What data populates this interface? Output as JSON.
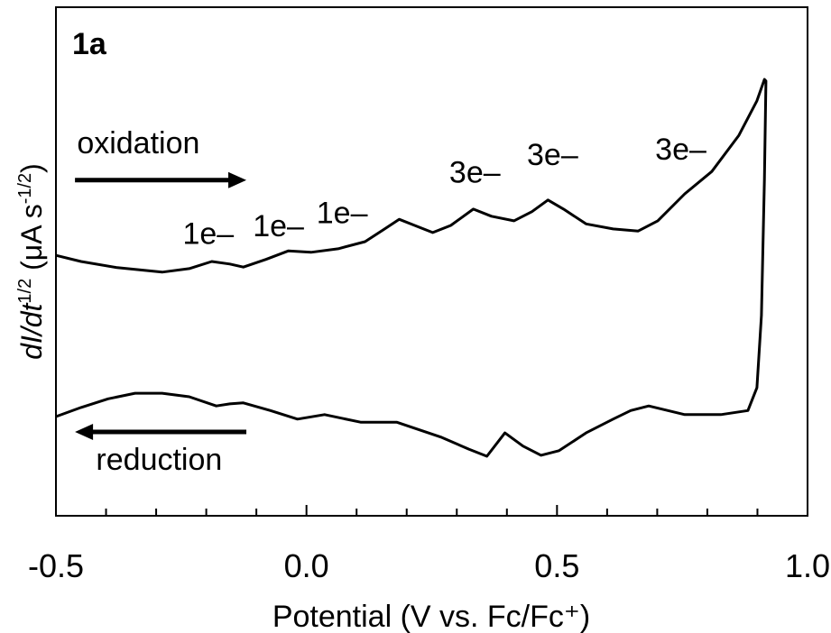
{
  "chart_data": {
    "type": "line",
    "panel_label": "1a",
    "xlabel": "Potential (V vs. Fc/Fc⁺)",
    "ylabel": [
      "dI/dt",
      "1/2",
      " (μA s",
      "-1/2",
      ")"
    ],
    "xlim": [
      -0.5,
      1.0
    ],
    "ylim": [
      0,
      100
    ],
    "xticks": [
      -0.5,
      {
        "value": 0,
        "label": "0.0"
      },
      0.5,
      {
        "value": 1,
        "label": "1.0"
      }
    ],
    "xminor_ticks": [
      -0.4,
      -0.3,
      -0.2,
      -0.1,
      0.1,
      0.2,
      0.3,
      0.4,
      0.6,
      0.7,
      0.8,
      0.9
    ],
    "color": "#000000",
    "x": [
      -0.5,
      -0.45,
      -0.378,
      -0.288,
      -0.234,
      -0.189,
      -0.153,
      -0.126,
      -0.081,
      -0.036,
      0.009,
      0.063,
      0.117,
      0.153,
      0.185,
      0.216,
      0.252,
      0.288,
      0.333,
      0.369,
      0.414,
      0.45,
      0.482,
      0.513,
      0.558,
      0.612,
      0.662,
      0.701,
      0.755,
      0.809,
      0.863,
      0.899,
      0.914,
      0.917,
      0.914,
      0.908,
      0.899,
      0.881,
      0.827,
      0.755,
      0.683,
      0.647,
      0.612,
      0.558,
      0.504,
      0.468,
      0.432,
      0.396,
      0.36,
      0.324,
      0.27,
      0.18,
      0.108,
      0.036,
      -0.018,
      -0.072,
      -0.126,
      -0.153,
      -0.18,
      -0.234,
      -0.288,
      -0.342,
      -0.396,
      -0.45,
      -0.5
    ],
    "values": [
      51.2,
      50.0,
      48.8,
      47.9,
      48.6,
      50.0,
      49.5,
      48.9,
      50.4,
      52.1,
      51.8,
      52.5,
      53.9,
      56.2,
      58.3,
      57.1,
      55.7,
      57.1,
      60.3,
      58.9,
      58.0,
      59.8,
      62.1,
      60.3,
      57.4,
      56.4,
      56.0,
      58.0,
      63.3,
      67.7,
      74.8,
      81.6,
      85.8,
      85.5,
      66.0,
      39.4,
      25.2,
      20.7,
      19.9,
      19.9,
      21.6,
      20.7,
      19.0,
      16.3,
      12.8,
      11.9,
      13.7,
      16.3,
      11.7,
      13.1,
      15.4,
      18.4,
      18.4,
      19.9,
      19.0,
      20.7,
      22.2,
      22.0,
      21.6,
      23.4,
      24.1,
      24.1,
      23.0,
      21.3,
      19.5
    ],
    "annotations": [
      {
        "text": "oxidation",
        "x": -0.458,
        "y": 71.3
      },
      {
        "text": "reduction",
        "x": -0.42,
        "y": 9.0
      },
      {
        "text": "1e–",
        "x": -0.247,
        "y": 53.5
      },
      {
        "text": "1e–",
        "x": -0.107,
        "y": 55.0
      },
      {
        "text": "1e–",
        "x": 0.02,
        "y": 57.5
      },
      {
        "text": "3e–",
        "x": 0.285,
        "y": 65.5
      },
      {
        "text": "3e–",
        "x": 0.44,
        "y": 69.0
      },
      {
        "text": "3e–",
        "x": 0.696,
        "y": 70.0
      }
    ],
    "arrows": [
      {
        "from": [
          -0.462,
          66.0
        ],
        "to": [
          -0.12,
          66.0
        ]
      },
      {
        "from": [
          -0.12,
          16.5
        ],
        "to": [
          -0.462,
          16.5
        ]
      }
    ]
  }
}
